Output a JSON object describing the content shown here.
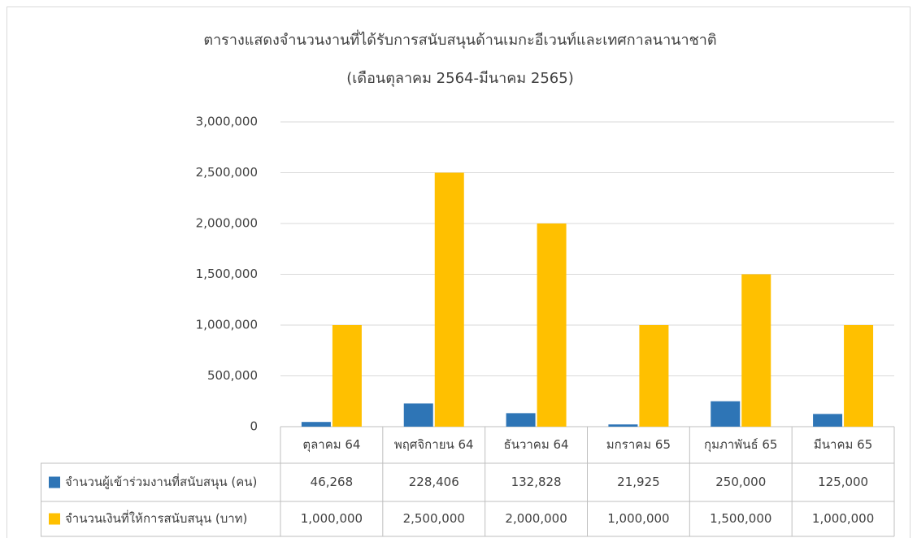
{
  "chart_data": {
    "type": "bar",
    "title": "ตารางแสดงจำนวนงานที่ได้รับการสนับสนุนด้านเมกะอีเวนท์และเทศกาลนานาชาติ",
    "subtitle": "(เดือนตุลาคม 2564-มีนาคม 2565)",
    "categories": [
      "ตุลาคม 64",
      "พฤศจิกายน 64",
      "ธันวาคม 64",
      "มกราคม 65",
      "กุมภาพันธ์ 65",
      "มีนาคม 65"
    ],
    "series": [
      {
        "name": "จำนวนผู้เข้าร่วมงานที่สนับสนุน (คน)",
        "color": "#2e75b6",
        "values": [
          46268,
          228406,
          132828,
          21925,
          250000,
          125000
        ],
        "value_labels": [
          "46,268",
          "228,406",
          "132,828",
          "21,925",
          "250,000",
          "125,000"
        ]
      },
      {
        "name": "จำนวนเงินที่ให้การสนับสนุน (บาท)",
        "color": "#ffc000",
        "values": [
          1000000,
          2500000,
          2000000,
          1000000,
          1500000,
          1000000
        ],
        "value_labels": [
          "1,000,000",
          "2,500,000",
          "2,000,000",
          "1,000,000",
          "1,500,000",
          "1,000,000"
        ]
      }
    ],
    "ylim": [
      0,
      3000000
    ],
    "yticks": [
      0,
      {
        "value": 500000,
        "label": "500,000"
      },
      {
        "value": 1000000,
        "label": "1,000,000"
      },
      {
        "value": 1500000,
        "label": "1,500,000"
      },
      {
        "value": 2000000,
        "label": "2,000,000"
      },
      {
        "value": 2500000,
        "label": "2,500,000"
      },
      {
        "value": 3000000,
        "label": "3,000,000"
      }
    ],
    "grid": true
  }
}
